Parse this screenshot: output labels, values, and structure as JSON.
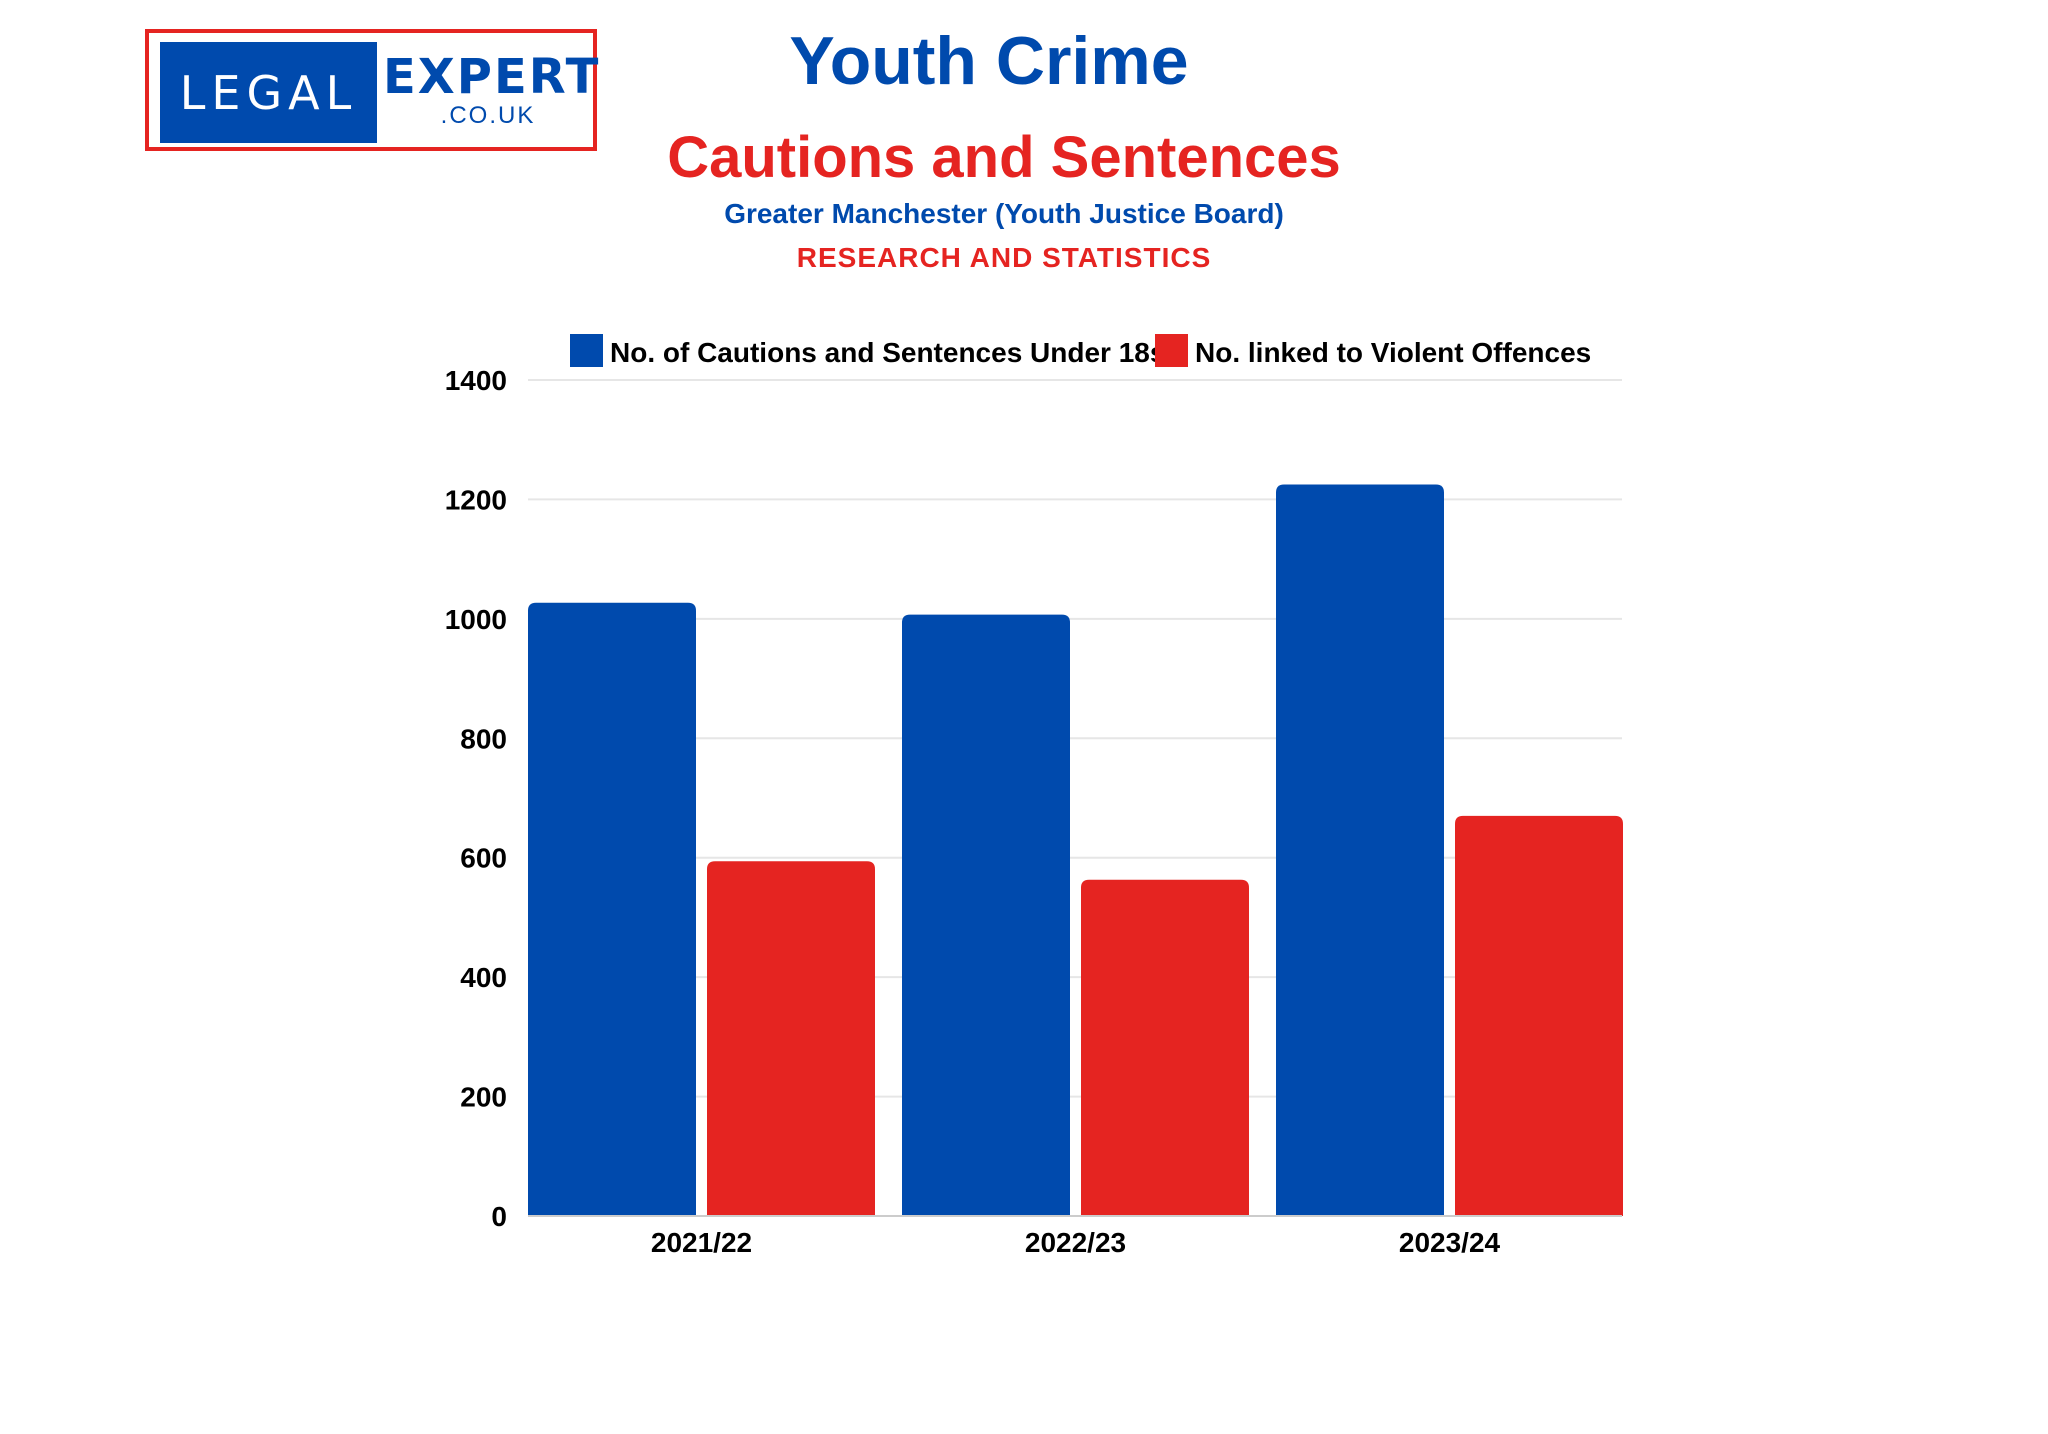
{
  "logo": {
    "left_text": "LEGAL",
    "right_text": "EXPERT",
    "domain": ".CO.UK"
  },
  "header": {
    "title": "Youth Crime",
    "subtitle": "Cautions and Sentences",
    "source": "Greater Manchester (Youth Justice Board)",
    "tagline": "RESEARCH AND STATISTICS"
  },
  "colors": {
    "blue": "#004aad",
    "red": "#e52421",
    "grid": "#e6e6e6"
  },
  "chart_data": {
    "type": "bar",
    "title": "Youth Crime - Cautions and Sentences",
    "xlabel": "",
    "ylabel": "",
    "categories": [
      "2021/22",
      "2022/23",
      "2023/24"
    ],
    "series": [
      {
        "name": "No. of Cautions and Sentences Under 18s",
        "color": "#004aad",
        "values": [
          1027,
          1007,
          1225
        ]
      },
      {
        "name": "No. linked to Violent Offences",
        "color": "#e52421",
        "values": [
          594,
          563,
          670
        ]
      }
    ],
    "ylim": [
      0,
      1400
    ],
    "yticks": [
      0,
      200,
      400,
      600,
      800,
      1000,
      1200,
      1400
    ],
    "grid": true,
    "legend": "top"
  }
}
